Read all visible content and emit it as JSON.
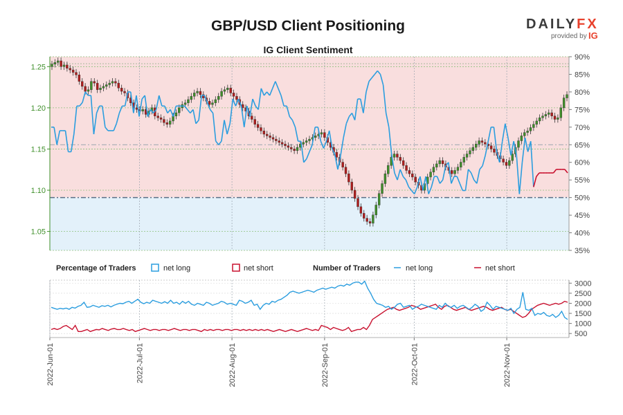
{
  "header": {
    "title": "GBP/USD Client Positioning",
    "subtitle": "IG Client Sentiment",
    "logo_text_a": "DAILY",
    "logo_text_b": "FX",
    "provided_by": "provided by",
    "provider": "IG"
  },
  "legend": {
    "pct_head": "Percentage of Traders",
    "num_head": "Number of Traders",
    "net_long": "net long",
    "net_short": "net short"
  },
  "colors": {
    "long": "#2a9ddf",
    "short": "#c8102e",
    "up_candle": "#3f8f2a",
    "down_candle": "#b01c1c",
    "short_zone": "#f9dede",
    "long_zone": "#e3f1fa"
  },
  "chart_data": [
    {
      "type": "candlestick",
      "title": "GBP/USD Client Positioning",
      "subtitle": "IG Client Sentiment",
      "x_ticks": [
        "2022-Jun-01",
        "2022-Jul-01",
        "2022-Aug-01",
        "2022-Sep-01",
        "2022-Oct-01",
        "2022-Nov-01"
      ],
      "x_range": [
        "2022-06-01",
        "2022-11-25"
      ],
      "price_axis": {
        "ticks": [
          1.05,
          1.1,
          1.15,
          1.2,
          1.25
        ],
        "range": [
          1.027,
          1.262
        ]
      },
      "pct_axis": {
        "ticks": [
          "35%",
          "40%",
          "45%",
          "50%",
          "55%",
          "60%",
          "65%",
          "70%",
          "75%",
          "80%",
          "85%",
          "90%"
        ],
        "range": [
          35,
          90
        ]
      },
      "reference_lines": [
        50,
        65,
        88
      ],
      "series": [
        {
          "name": "net long",
          "unit": "percent",
          "values": [
            70,
            70,
            65,
            69,
            69,
            69,
            63,
            63,
            68,
            76,
            76,
            77,
            80,
            79,
            79,
            68,
            74,
            76,
            76,
            70,
            69,
            69,
            69,
            71,
            74,
            76,
            76,
            80,
            80,
            74,
            79,
            73,
            78,
            79,
            73,
            75,
            74,
            75,
            79,
            76,
            76,
            74,
            75,
            73,
            76,
            76,
            76,
            76,
            75,
            74,
            75,
            71,
            72,
            79,
            79,
            77,
            75,
            74,
            66,
            65,
            66,
            72,
            68,
            71,
            78,
            76,
            78,
            76,
            70,
            76,
            73,
            78,
            76,
            75,
            81,
            79,
            80,
            79,
            81,
            83,
            81,
            79,
            76,
            76,
            73,
            72,
            70,
            66,
            66,
            60,
            61,
            63,
            65,
            70,
            70,
            66,
            64,
            66,
            69,
            64,
            62,
            58,
            62,
            67,
            71,
            73,
            74,
            72,
            78,
            78,
            74,
            80,
            83,
            84,
            85,
            86,
            85,
            82,
            74,
            70,
            62,
            57,
            55,
            58,
            56,
            55,
            53,
            52,
            51,
            53,
            56,
            52,
            56,
            51,
            53,
            56,
            56,
            54,
            55,
            59,
            60,
            54,
            56,
            56,
            54,
            52,
            52,
            58,
            57,
            55,
            54,
            58,
            59,
            62,
            66,
            70,
            70,
            63,
            60,
            66,
            71,
            67,
            62,
            66,
            62,
            51,
            60,
            67,
            63,
            66,
            53,
            44,
            43,
            43,
            43,
            43,
            43,
            43,
            42,
            42,
            42,
            42,
            43
          ],
          "segments": [
            [
              0,
              107
            ],
            [
              107,
              170
            ]
          ]
        },
        {
          "name": "net short",
          "unit": "percent",
          "values": [
            30,
            30,
            35,
            31,
            31,
            31,
            37,
            37,
            32,
            24,
            24,
            23,
            20,
            21,
            21,
            32,
            26,
            24,
            24,
            30,
            31,
            31,
            31,
            29,
            26,
            24,
            24,
            20,
            20,
            26,
            21,
            27,
            22,
            21,
            27,
            25,
            26,
            25,
            21,
            24,
            24,
            26,
            25,
            27,
            24,
            24,
            24,
            24,
            25,
            26,
            25,
            29,
            28,
            21,
            21,
            23,
            25,
            26,
            34,
            35,
            34,
            28,
            32,
            29,
            22,
            24,
            22,
            24,
            30,
            24,
            27,
            22,
            24,
            25,
            19,
            21,
            20,
            21,
            19,
            17,
            19,
            21,
            24,
            24,
            27,
            28,
            30,
            34,
            34,
            40,
            39,
            37,
            35,
            30,
            30,
            34,
            36,
            34,
            31,
            36,
            38,
            42,
            38,
            33,
            29,
            27,
            26,
            28,
            22,
            22,
            26,
            20,
            17,
            16,
            15,
            14,
            15,
            18,
            26,
            30,
            38,
            43,
            45,
            42,
            44,
            45,
            47,
            48,
            49,
            47,
            44,
            48,
            44,
            49,
            47,
            44,
            44,
            46,
            45,
            41,
            40,
            46,
            44,
            44,
            46,
            48,
            48,
            42,
            43,
            45,
            46,
            42,
            41,
            38,
            34,
            30,
            30,
            37,
            40,
            34,
            29,
            33,
            38,
            34,
            38,
            49,
            40,
            33,
            37,
            34,
            47,
            56,
            57,
            57,
            57,
            57,
            57,
            57,
            58,
            58,
            58,
            58,
            57
          ]
        },
        {
          "name": "GBP/USD",
          "type": "ohlc",
          "close": [
            1.253,
            1.255,
            1.257,
            1.25,
            1.252,
            1.248,
            1.246,
            1.243,
            1.24,
            1.232,
            1.226,
            1.22,
            1.222,
            1.232,
            1.23,
            1.222,
            1.224,
            1.226,
            1.228,
            1.23,
            1.232,
            1.23,
            1.224,
            1.22,
            1.218,
            1.212,
            1.206,
            1.2,
            1.198,
            1.196,
            1.198,
            1.192,
            1.196,
            1.2,
            1.19,
            1.188,
            1.186,
            1.182,
            1.18,
            1.184,
            1.19,
            1.194,
            1.2,
            1.204,
            1.206,
            1.21,
            1.214,
            1.218,
            1.22,
            1.216,
            1.212,
            1.208,
            1.204,
            1.206,
            1.21,
            1.214,
            1.22,
            1.222,
            1.224,
            1.218,
            1.214,
            1.21,
            1.204,
            1.2,
            1.196,
            1.19,
            1.186,
            1.18,
            1.176,
            1.172,
            1.168,
            1.166,
            1.164,
            1.162,
            1.16,
            1.158,
            1.156,
            1.154,
            1.152,
            1.15,
            1.148,
            1.152,
            1.156,
            1.158,
            1.16,
            1.162,
            1.164,
            1.166,
            1.168,
            1.17,
            1.164,
            1.158,
            1.152,
            1.146,
            1.14,
            1.134,
            1.128,
            1.12,
            1.11,
            1.1,
            1.09,
            1.08,
            1.072,
            1.066,
            1.062,
            1.06,
            1.07,
            1.082,
            1.096,
            1.108,
            1.12,
            1.13,
            1.14,
            1.144,
            1.14,
            1.136,
            1.13,
            1.124,
            1.12,
            1.116,
            1.11,
            1.106,
            1.1,
            1.108,
            1.116,
            1.122,
            1.128,
            1.132,
            1.136,
            1.132,
            1.128,
            1.124,
            1.12,
            1.124,
            1.128,
            1.134,
            1.14,
            1.144,
            1.148,
            1.152,
            1.156,
            1.16,
            1.158,
            1.156,
            1.154,
            1.15,
            1.146,
            1.142,
            1.138,
            1.134,
            1.13,
            1.136,
            1.144,
            1.152,
            1.16,
            1.166,
            1.17,
            1.172,
            1.176,
            1.18,
            1.184,
            1.188,
            1.19,
            1.192,
            1.194,
            1.19,
            1.186,
            1.188,
            1.2,
            1.212,
            1.216
          ]
        }
      ]
    },
    {
      "type": "line",
      "title": "Number of Traders",
      "y_axis": {
        "ticks": [
          500,
          1000,
          1500,
          2000,
          2500,
          3000
        ],
        "range": [
          300,
          3150
        ]
      },
      "series": [
        {
          "name": "net long",
          "values": [
            1800,
            1750,
            1700,
            1750,
            1720,
            1760,
            1700,
            1800,
            1760,
            1850,
            1900,
            2050,
            1800,
            1820,
            1900,
            1850,
            1800,
            1880,
            1850,
            1900,
            1820,
            1900,
            1950,
            2000,
            1980,
            2050,
            2100,
            2000,
            2100,
            2200,
            2050,
            1980,
            2050,
            2000,
            2150,
            2100,
            2050,
            2000,
            2080,
            2000,
            2150,
            2000,
            2050,
            1950,
            2100,
            2000,
            2100,
            1950,
            1900,
            2000,
            1950,
            1900,
            2050,
            2000,
            1900,
            1950,
            2000,
            2100,
            2050,
            1950,
            2000,
            1950,
            1900,
            2150,
            2100,
            2000,
            2050,
            2150,
            1900,
            1950,
            1700,
            1900,
            2000,
            1950,
            2100,
            2050,
            2150,
            2200,
            2300,
            2400,
            2550,
            2600,
            2550,
            2500,
            2550,
            2600,
            2650,
            2600,
            2550,
            2650,
            2700,
            2750,
            2700,
            2750,
            2800,
            2750,
            2850,
            2900,
            2850,
            2950,
            2900,
            3000,
            3050,
            3050,
            2950,
            3100,
            2750,
            2500,
            2200,
            2000,
            1950,
            1900,
            1800,
            1850,
            1700,
            1800,
            1950,
            2000,
            1800,
            1850,
            1900,
            1700,
            1800,
            1850,
            1950,
            1900,
            1850,
            1800,
            1750,
            1700,
            1900,
            1800,
            2000,
            1850,
            1800,
            1900,
            1750,
            1850,
            1900,
            1800,
            1700,
            1800,
            1950,
            1850,
            1600,
            1700,
            2050,
            1900,
            1700,
            1850,
            1800,
            1750,
            1700,
            1650,
            1750,
            1500,
            1700,
            1800,
            2550,
            1700,
            1650,
            1750,
            1400,
            1500,
            1450,
            1550,
            1400,
            1350,
            1450,
            1300,
            1400,
            1600,
            1300,
            1200
          ],
          "segments": [
            [
              0,
              107
            ],
            [
              107,
              180
            ]
          ]
        },
        {
          "name": "net short",
          "values": [
            700,
            750,
            700,
            750,
            850,
            900,
            800,
            700,
            900,
            600,
            600,
            650,
            700,
            600,
            650,
            700,
            680,
            750,
            700,
            650,
            720,
            750,
            700,
            700,
            750,
            700,
            650,
            700,
            600,
            650,
            700,
            750,
            700,
            650,
            700,
            700,
            650,
            700,
            700,
            650,
            700,
            750,
            700,
            650,
            700,
            700,
            650,
            700,
            700,
            650,
            600,
            700,
            650,
            700,
            650,
            700,
            700,
            650,
            700,
            700,
            650,
            700,
            700,
            650,
            700,
            650,
            700,
            650,
            700,
            650,
            700,
            650,
            700,
            650,
            600,
            650,
            700,
            650,
            600,
            650,
            700,
            650,
            600,
            650,
            700,
            750,
            700,
            650,
            700,
            650,
            900,
            850,
            800,
            700,
            800,
            750,
            700,
            650,
            700,
            800,
            600,
            650,
            700,
            700,
            800,
            700,
            900,
            1200,
            1300,
            1400,
            1500,
            1600,
            1700,
            1750,
            1800,
            1700,
            1650,
            1700,
            1750,
            1800,
            1900,
            1850,
            1800,
            1700,
            1750,
            1800,
            1850,
            1900,
            1950,
            1800,
            1700,
            1850,
            1900,
            1800,
            1700,
            1650,
            1700,
            1750,
            1800,
            1700,
            1650,
            1700,
            1750,
            1800,
            1850,
            1800,
            1700,
            1650,
            1700,
            1750,
            1800,
            1700,
            1650,
            1700,
            1600,
            1500,
            1400,
            1300,
            1350,
            1500,
            1700,
            1800,
            1900,
            1950,
            2000,
            1950,
            1900,
            1950,
            2000,
            1950,
            2000,
            2100,
            2050
          ]
        }
      ]
    }
  ],
  "axis_labels": {
    "price_ticks": [
      "1.25",
      "1.20",
      "1.15",
      "1.10",
      "1.05"
    ],
    "pct_ticks": [
      "90%",
      "85%",
      "80%",
      "75%",
      "70%",
      "65%",
      "60%",
      "55%",
      "50%",
      "45%",
      "40%",
      "35%"
    ],
    "count_ticks": [
      "3000",
      "2500",
      "2000",
      "1500",
      "1000",
      "500"
    ],
    "date_ticks": [
      "2022-Jun-01",
      "2022-Jul-01",
      "2022-Aug-01",
      "2022-Sep-01",
      "2022-Oct-01",
      "2022-Nov-01"
    ]
  }
}
